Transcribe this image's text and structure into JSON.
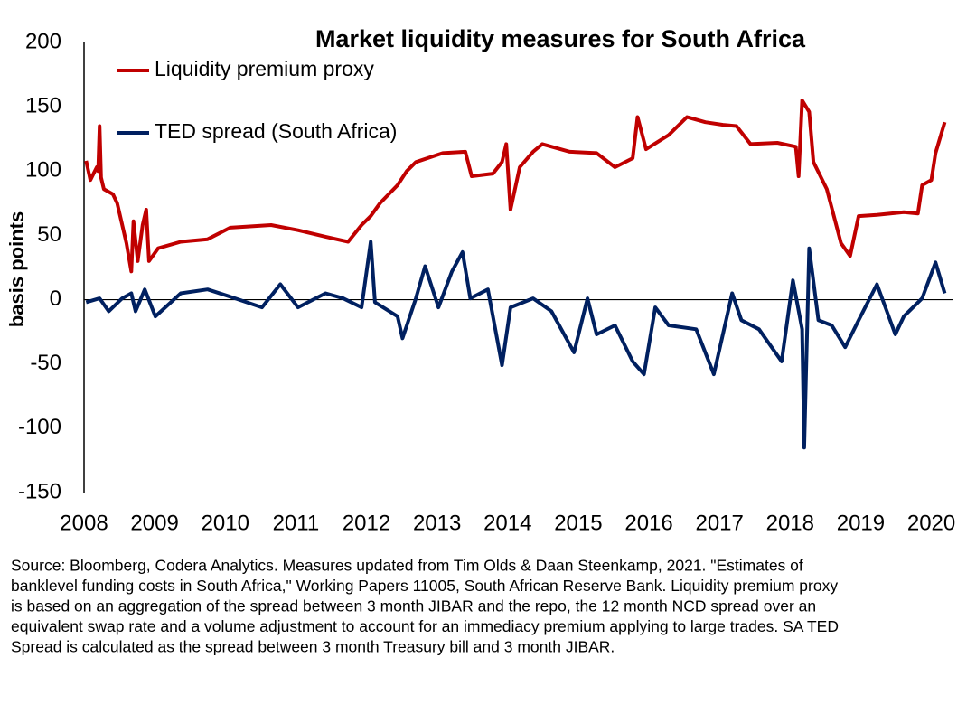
{
  "chart_data": {
    "type": "line",
    "title": "Market liquidity measures for South Africa",
    "y_label": "basis points",
    "xlim": [
      2008,
      2020.3
    ],
    "ylim": [
      -150,
      200
    ],
    "xticks": [
      2008,
      2009,
      2010,
      2011,
      2012,
      2013,
      2014,
      2015,
      2016,
      2017,
      2018,
      2019,
      2020
    ],
    "yticks": [
      200,
      150,
      100,
      50,
      0,
      -50,
      -100,
      -150
    ],
    "series": [
      {
        "name": "Liquidity premium proxy",
        "color": "#c00000",
        "x": [
          2008.03,
          2008.09,
          2008.18,
          2008.2,
          2008.22,
          2008.24,
          2008.28,
          2008.41,
          2008.47,
          2008.6,
          2008.67,
          2008.7,
          2008.76,
          2008.83,
          2008.88,
          2008.92,
          2009.05,
          2009.37,
          2009.75,
          2010.07,
          2010.65,
          2011.03,
          2011.42,
          2011.74,
          2011.93,
          2012.06,
          2012.19,
          2012.44,
          2012.57,
          2012.7,
          2013.08,
          2013.4,
          2013.49,
          2013.79,
          2013.92,
          2013.98,
          2014.04,
          2014.17,
          2014.36,
          2014.49,
          2014.88,
          2015.26,
          2015.52,
          2015.77,
          2015.84,
          2015.96,
          2016.28,
          2016.54,
          2016.8,
          2017.05,
          2017.24,
          2017.44,
          2017.82,
          2018.08,
          2018.12,
          2018.17,
          2018.27,
          2018.33,
          2018.52,
          2018.72,
          2018.85,
          2018.97,
          2019.23,
          2019.61,
          2019.81,
          2019.87,
          2020.0,
          2020.06,
          2020.19
        ],
        "values": [
          108,
          93,
          103,
          100,
          135,
          95,
          86,
          82,
          75,
          44,
          22,
          61,
          30,
          58,
          70,
          30,
          40,
          45,
          47,
          56,
          58,
          54,
          49,
          45,
          58,
          65,
          75,
          89,
          100,
          107,
          114,
          115,
          96,
          98,
          107,
          121,
          70,
          103,
          115,
          121,
          115,
          114,
          103,
          110,
          142,
          117,
          128,
          142,
          138,
          136,
          135,
          121,
          122,
          119,
          96,
          155,
          146,
          107,
          86,
          44,
          34,
          65,
          66,
          68,
          67,
          89,
          93,
          114,
          138
        ]
      },
      {
        "name": "TED spread (South Africa)",
        "color": "#002060",
        "x": [
          2008.03,
          2008.22,
          2008.35,
          2008.54,
          2008.67,
          2008.73,
          2008.86,
          2009.01,
          2009.37,
          2009.75,
          2010.14,
          2010.52,
          2010.78,
          2011.03,
          2011.42,
          2011.67,
          2011.93,
          2012.06,
          2012.12,
          2012.44,
          2012.51,
          2012.7,
          2012.83,
          2013.02,
          2013.21,
          2013.36,
          2013.47,
          2013.72,
          2013.92,
          2014.04,
          2014.36,
          2014.62,
          2014.94,
          2015.13,
          2015.26,
          2015.52,
          2015.77,
          2015.93,
          2016.09,
          2016.28,
          2016.67,
          2016.92,
          2017.18,
          2017.31,
          2017.56,
          2017.88,
          2018.04,
          2018.17,
          2018.2,
          2018.27,
          2018.4,
          2018.59,
          2018.78,
          2018.97,
          2019.23,
          2019.49,
          2019.61,
          2019.87,
          2020.06,
          2020.19
        ],
        "values": [
          -2,
          1,
          -9,
          1,
          5,
          -9,
          8,
          -13,
          5,
          8,
          1,
          -6,
          12,
          -6,
          5,
          1,
          -6,
          45,
          -2,
          -13,
          -30,
          1,
          26,
          -6,
          22,
          37,
          1,
          8,
          -51,
          -6,
          1,
          -9,
          -41,
          1,
          -27,
          -20,
          -48,
          -58,
          -6,
          -20,
          -23,
          -58,
          5,
          -16,
          -23,
          -48,
          15,
          -23,
          -115,
          40,
          -16,
          -20,
          -37,
          -16,
          12,
          -27,
          -13,
          1,
          29,
          5
        ]
      }
    ],
    "source": [
      "Source: Bloomberg, Codera Analytics. Measures updated from Tim Olds & Daan Steenkamp, 2021. \"Estimates of",
      "banklevel funding costs in South Africa,\" Working Papers 11005, South African Reserve Bank. Liquidity premium proxy",
      "is based on an aggregation of the spread between 3 month JIBAR and the repo, the 12 month NCD spread over an",
      "equivalent swap rate and a volume adjustment to account for an immediacy premium applying to large trades. SA TED",
      "Spread is calculated as the spread between 3 month Treasury bill and 3 month JIBAR."
    ]
  }
}
